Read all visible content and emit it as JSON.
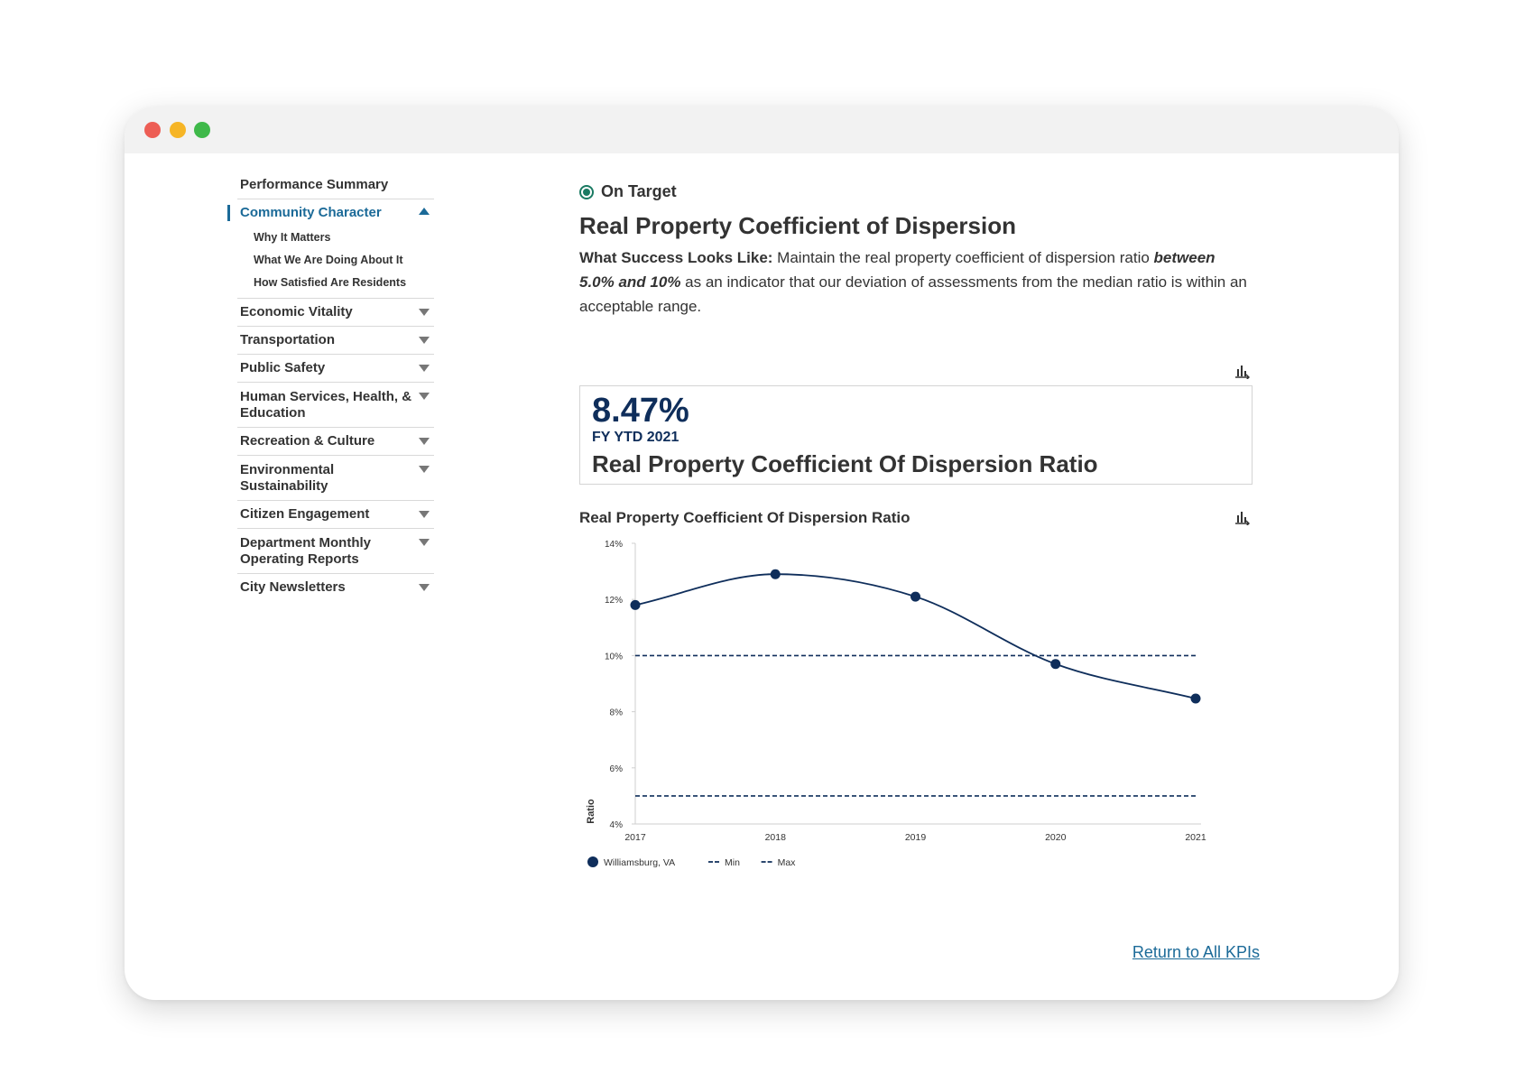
{
  "sidebar": {
    "items": [
      {
        "label": "Performance Summary"
      },
      {
        "label": "Community Character",
        "active": true,
        "subitems": [
          "Why It Matters",
          "What We Are Doing About It",
          "How Satisfied Are Residents"
        ]
      },
      {
        "label": "Economic Vitality"
      },
      {
        "label": "Transportation"
      },
      {
        "label": "Public Safety"
      },
      {
        "label": "Human Services, Health, & Education"
      },
      {
        "label": "Recreation & Culture"
      },
      {
        "label": "Environmental Sustainability"
      },
      {
        "label": "Citizen Engagement"
      },
      {
        "label": "Department Monthly Operating Reports"
      },
      {
        "label": "City Newsletters"
      }
    ]
  },
  "main": {
    "status": "On Target",
    "title": "Real Property Coefficient of Dispersion",
    "desc_lead": "What Success Looks Like:",
    "desc_part1": " Maintain the real property coefficient of dispersion ratio ",
    "desc_emph": "between 5.0% and 10%",
    "desc_part2": " as an indicator that our deviation of assessments from the median ratio is within an acceptable range.",
    "kpi_value": "8.47%",
    "kpi_period": "FY YTD 2021",
    "kpi_name": "Real Property Coefficient Of Dispersion Ratio",
    "return_link": "Return to All KPIs"
  },
  "icons": {
    "status": "on-target-icon",
    "export": "chart-export-icon"
  },
  "colors": {
    "accent": "#1b6a98",
    "series": "#0f2e5b",
    "status": "#1a7a62"
  },
  "chart_data": {
    "type": "line",
    "title": "Real Property Coefficient Of Dispersion Ratio",
    "ylabel": "Ratio",
    "x": [
      "2017",
      "2018",
      "2019",
      "2020",
      "2021"
    ],
    "ylim": [
      4,
      14
    ],
    "yticks": [
      "4%",
      "6%",
      "8%",
      "10%",
      "12%",
      "14%"
    ],
    "series": [
      {
        "name": "Williamsburg, VA",
        "values": [
          11.8,
          12.9,
          12.1,
          9.7,
          8.47
        ],
        "style": "solid-smooth-with-markers"
      },
      {
        "name": "Min",
        "values": [
          5,
          5,
          5,
          5,
          5
        ],
        "style": "dashed"
      },
      {
        "name": "Max",
        "values": [
          10,
          10,
          10,
          10,
          10
        ],
        "style": "dashed"
      }
    ],
    "legend_position": "bottom-left"
  }
}
